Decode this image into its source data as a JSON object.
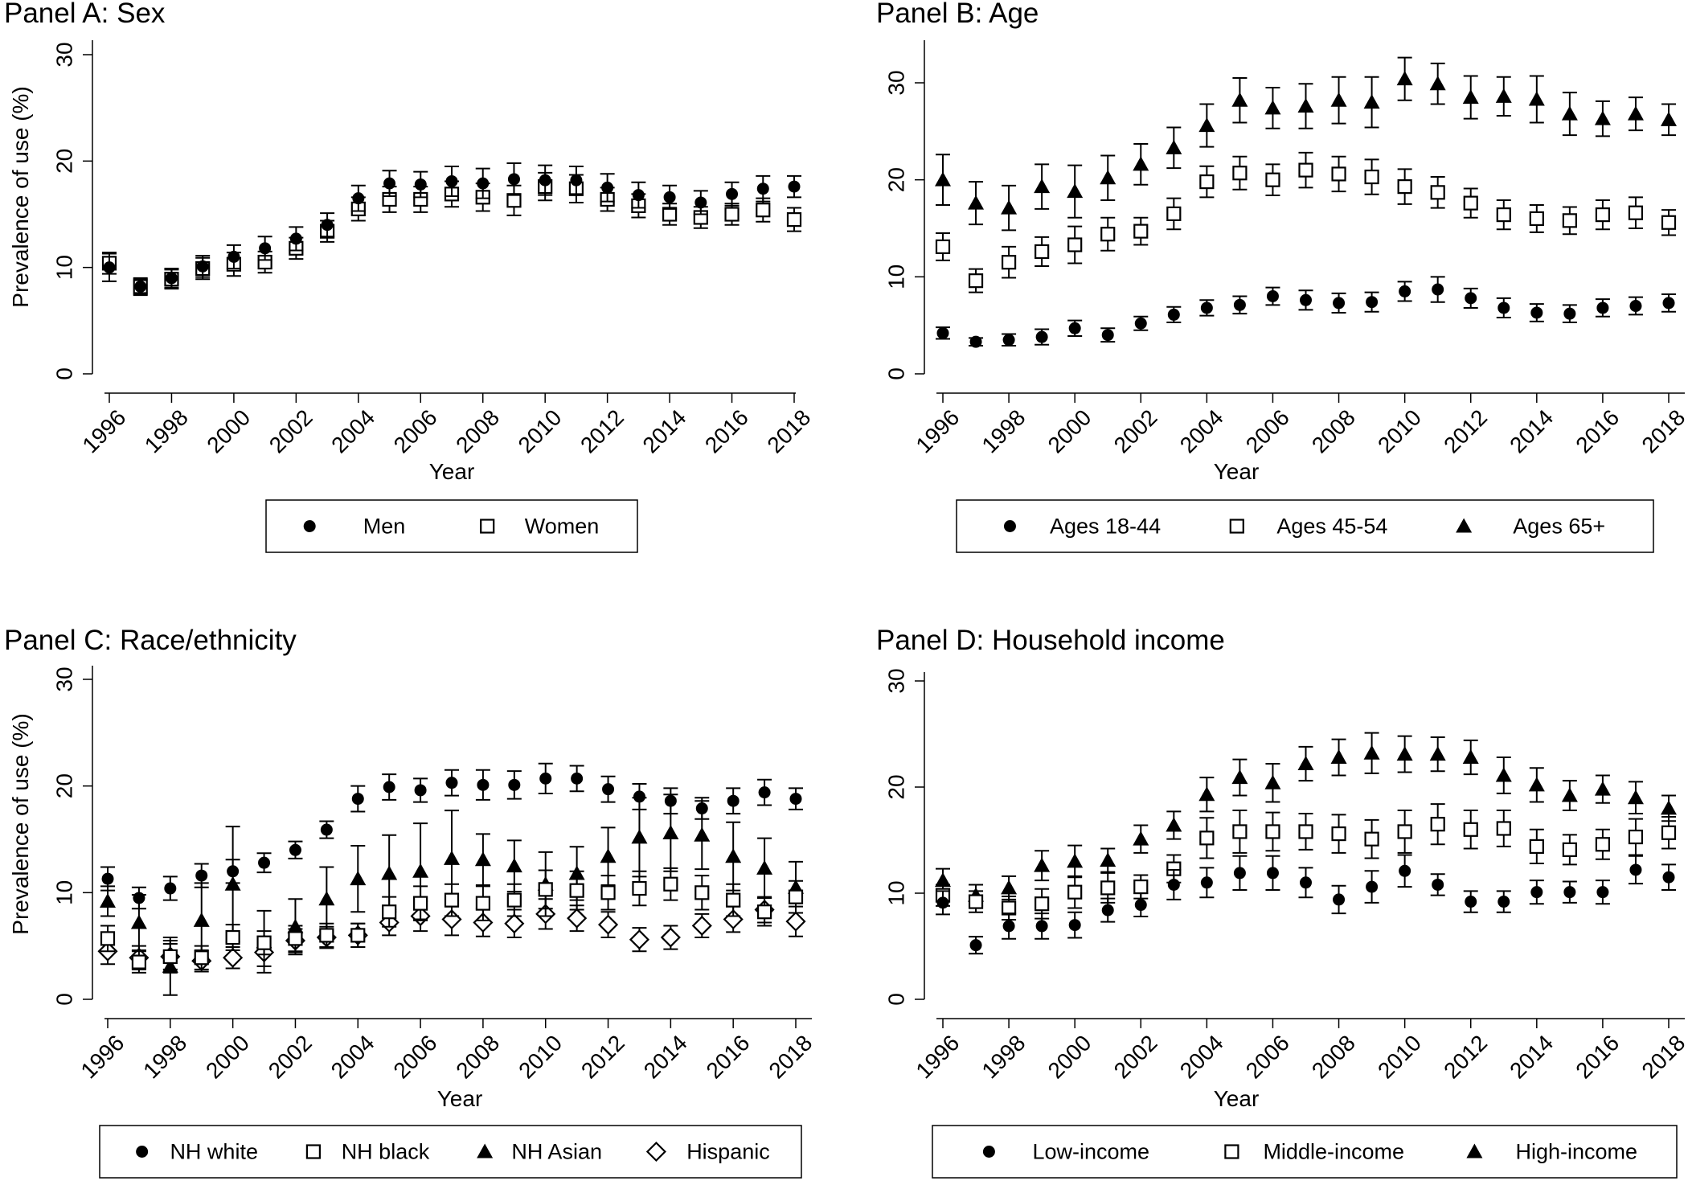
{
  "chart_data": [
    {
      "type": "scatter",
      "title": "Panel A: Sex",
      "xlabel": "Year",
      "ylabel": "Prevalence of use (%)",
      "ylim": [
        0,
        30
      ],
      "yticks": [
        "0",
        "10",
        "20",
        "30"
      ],
      "x": [
        1996,
        1997,
        1998,
        1999,
        2000,
        2001,
        2002,
        2003,
        2004,
        2005,
        2006,
        2007,
        2008,
        2009,
        2010,
        2011,
        2012,
        2013,
        2014,
        2015,
        2016,
        2017,
        2018
      ],
      "xticks": [
        "1996",
        "1998",
        "2000",
        "2002",
        "2004",
        "2006",
        "2008",
        "2010",
        "2012",
        "2014",
        "2016",
        "2018"
      ],
      "series": [
        {
          "name": "Men",
          "marker": "circle",
          "values": [
            10.0,
            8.2,
            9.0,
            10.1,
            11.0,
            11.8,
            12.7,
            14.0,
            16.5,
            17.9,
            17.8,
            18.1,
            17.9,
            18.3,
            18.2,
            18.2,
            17.5,
            16.8,
            16.6,
            16.1,
            16.9,
            17.4,
            17.6
          ],
          "errors": [
            1.3,
            0.7,
            0.9,
            1.0,
            1.1,
            1.1,
            1.1,
            1.1,
            1.2,
            1.2,
            1.2,
            1.4,
            1.4,
            1.5,
            1.4,
            1.3,
            1.3,
            1.2,
            1.1,
            1.1,
            1.1,
            1.2,
            1.0
          ]
        },
        {
          "name": "Women",
          "marker": "square",
          "values": [
            10.4,
            8.2,
            8.9,
            9.9,
            10.3,
            10.5,
            11.8,
            13.4,
            15.5,
            16.4,
            16.4,
            16.9,
            16.6,
            16.3,
            17.6,
            17.4,
            16.4,
            15.8,
            15.0,
            14.7,
            15.0,
            15.4,
            14.5
          ],
          "errors": [
            1.0,
            0.8,
            0.9,
            1.0,
            1.1,
            1.0,
            1.0,
            1.0,
            1.1,
            1.2,
            1.2,
            1.2,
            1.3,
            1.4,
            1.3,
            1.3,
            1.1,
            1.1,
            1.0,
            1.0,
            1.0,
            1.1,
            1.1
          ]
        }
      ]
    },
    {
      "type": "scatter",
      "title": "Panel B: Age",
      "xlabel": "Year",
      "ylabel": "",
      "ylim": [
        0,
        34
      ],
      "yticks": [
        "0",
        "10",
        "20",
        "30"
      ],
      "x": [
        1996,
        1997,
        1998,
        1999,
        2000,
        2001,
        2002,
        2003,
        2004,
        2005,
        2006,
        2007,
        2008,
        2009,
        2010,
        2011,
        2012,
        2013,
        2014,
        2015,
        2016,
        2017,
        2018
      ],
      "xticks": [
        "1996",
        "1998",
        "2000",
        "2002",
        "2004",
        "2006",
        "2008",
        "2010",
        "2012",
        "2014",
        "2016",
        "2018"
      ],
      "series": [
        {
          "name": "Ages 18-44",
          "marker": "circle",
          "values": [
            4.2,
            3.3,
            3.5,
            3.8,
            4.7,
            4.0,
            5.2,
            6.1,
            6.8,
            7.1,
            8.0,
            7.6,
            7.3,
            7.4,
            8.5,
            8.7,
            7.8,
            6.8,
            6.3,
            6.2,
            6.8,
            7.0,
            7.3
          ],
          "errors": [
            0.6,
            0.4,
            0.6,
            0.8,
            0.8,
            0.7,
            0.7,
            0.8,
            0.8,
            0.9,
            0.9,
            1.0,
            1.0,
            1.0,
            1.0,
            1.3,
            1.0,
            1.0,
            0.9,
            0.9,
            0.9,
            0.9,
            0.9
          ]
        },
        {
          "name": "Ages 45-54",
          "marker": "square",
          "values": [
            13.1,
            9.6,
            11.5,
            12.6,
            13.3,
            14.4,
            14.7,
            16.5,
            19.8,
            20.7,
            20.0,
            21.0,
            20.6,
            20.3,
            19.3,
            18.7,
            17.6,
            16.4,
            16.0,
            15.8,
            16.4,
            16.6,
            15.6
          ],
          "errors": [
            1.4,
            1.2,
            1.6,
            1.5,
            1.9,
            1.7,
            1.4,
            1.6,
            1.6,
            1.7,
            1.6,
            1.8,
            1.8,
            1.8,
            1.8,
            1.6,
            1.5,
            1.5,
            1.4,
            1.4,
            1.5,
            1.6,
            1.3
          ]
        },
        {
          "name": "Ages 65+",
          "marker": "triangle",
          "values": [
            20.0,
            17.6,
            17.1,
            19.3,
            18.8,
            20.2,
            21.6,
            23.3,
            25.6,
            28.2,
            27.4,
            27.6,
            28.2,
            28.0,
            30.4,
            29.9,
            28.5,
            28.6,
            28.3,
            26.8,
            26.3,
            26.8,
            26.2
          ],
          "errors": [
            2.6,
            2.2,
            2.3,
            2.3,
            2.7,
            2.3,
            2.1,
            2.1,
            2.2,
            2.3,
            2.1,
            2.3,
            2.4,
            2.6,
            2.2,
            2.1,
            2.2,
            2.0,
            2.4,
            2.2,
            1.8,
            1.7,
            1.6
          ]
        }
      ]
    },
    {
      "type": "scatter",
      "title": "Panel C: Race/ethnicity",
      "xlabel": "Year",
      "ylabel": "Prevalence of use (%)",
      "ylim": [
        0,
        30
      ],
      "yticks": [
        "0",
        "10",
        "20",
        "30"
      ],
      "x": [
        1996,
        1997,
        1998,
        1999,
        2000,
        2001,
        2002,
        2003,
        2004,
        2005,
        2006,
        2007,
        2008,
        2009,
        2010,
        2011,
        2012,
        2013,
        2014,
        2015,
        2016,
        2017,
        2018
      ],
      "xticks": [
        "1996",
        "1998",
        "2000",
        "2002",
        "2004",
        "2006",
        "2008",
        "2010",
        "2012",
        "2014",
        "2016",
        "2018"
      ],
      "series": [
        {
          "name": "NH white",
          "marker": "circle",
          "values": [
            11.3,
            9.5,
            10.4,
            11.6,
            12.0,
            12.8,
            14.0,
            15.9,
            18.8,
            19.9,
            19.6,
            20.3,
            20.1,
            20.1,
            20.7,
            20.7,
            19.7,
            19.0,
            18.6,
            17.9,
            18.6,
            19.4,
            18.8
          ],
          "errors": [
            1.1,
            1.0,
            1.1,
            1.1,
            1.1,
            0.9,
            0.8,
            0.8,
            1.2,
            1.2,
            1.1,
            1.2,
            1.4,
            1.3,
            1.4,
            1.2,
            1.2,
            1.2,
            1.2,
            1.0,
            1.2,
            1.2,
            1.0
          ]
        },
        {
          "name": "NH black",
          "marker": "square",
          "values": [
            5.7,
            3.5,
            4.0,
            3.9,
            5.8,
            5.3,
            5.7,
            6.0,
            6.0,
            8.2,
            9.0,
            9.3,
            9.0,
            9.3,
            10.3,
            10.2,
            10.0,
            10.4,
            10.8,
            10.0,
            9.3,
            8.2,
            9.6
          ],
          "errors": [
            1.2,
            1.0,
            1.2,
            1.1,
            1.2,
            1.1,
            1.2,
            1.1,
            1.1,
            1.4,
            1.6,
            1.5,
            1.6,
            1.5,
            1.8,
            1.8,
            1.6,
            1.6,
            1.5,
            1.6,
            1.5,
            1.3,
            1.5
          ]
        },
        {
          "name": "NH Asian",
          "marker": "triangle",
          "values": [
            9.2,
            7.2,
            3.1,
            7.4,
            10.8,
            5.4,
            6.8,
            9.4,
            11.3,
            11.8,
            12.0,
            13.2,
            13.1,
            12.5,
            10.8,
            11.8,
            13.4,
            15.2,
            15.6,
            15.4,
            13.4,
            12.3,
            10.5
          ],
          "errors": [
            1.4,
            2.6,
            2.7,
            3.5,
            5.4,
            2.9,
            2.6,
            3.0,
            3.1,
            3.6,
            4.5,
            4.5,
            2.4,
            2.4,
            3.0,
            2.5,
            2.7,
            3.7,
            3.6,
            3.2,
            3.2,
            2.8,
            2.4
          ]
        },
        {
          "name": "Hispanic",
          "marker": "diamond",
          "values": [
            4.5,
            3.9,
            4.0,
            3.6,
            3.9,
            4.4,
            5.5,
            5.8,
            6.0,
            7.2,
            7.8,
            7.5,
            7.2,
            7.1,
            8.0,
            7.6,
            7.0,
            5.6,
            5.8,
            6.9,
            7.5,
            8.4,
            7.3
          ],
          "errors": [
            1.2,
            1.1,
            1.5,
            1.0,
            1.0,
            1.3,
            1.1,
            1.0,
            1.1,
            1.2,
            1.4,
            1.5,
            1.3,
            1.3,
            1.4,
            1.2,
            1.2,
            1.1,
            1.1,
            1.1,
            1.2,
            1.2,
            1.4
          ]
        }
      ]
    },
    {
      "type": "scatter",
      "title": "Panel D: Household income",
      "xlabel": "Year",
      "ylabel": "",
      "ylim": [
        0,
        30
      ],
      "yticks": [
        "0",
        "10",
        "20",
        "30"
      ],
      "x": [
        1996,
        1997,
        1998,
        1999,
        2000,
        2001,
        2002,
        2003,
        2004,
        2005,
        2006,
        2007,
        2008,
        2009,
        2010,
        2011,
        2012,
        2013,
        2014,
        2015,
        2016,
        2017,
        2018
      ],
      "xticks": [
        "1996",
        "1998",
        "2000",
        "2002",
        "2004",
        "2006",
        "2008",
        "2010",
        "2012",
        "2014",
        "2016",
        "2018"
      ],
      "series": [
        {
          "name": "Low-income",
          "marker": "circle",
          "values": [
            9.1,
            5.1,
            6.9,
            6.9,
            7.0,
            8.4,
            8.9,
            10.8,
            11.0,
            11.9,
            11.9,
            11.0,
            9.4,
            10.6,
            12.1,
            10.8,
            9.2,
            9.2,
            10.1,
            10.1,
            10.1,
            12.2,
            11.5
          ],
          "errors": [
            1.1,
            0.8,
            1.2,
            1.2,
            1.2,
            1.1,
            1.1,
            1.4,
            1.4,
            1.6,
            1.6,
            1.4,
            1.3,
            1.5,
            1.5,
            1.0,
            1.0,
            1.0,
            1.1,
            1.0,
            1.1,
            1.3,
            1.2
          ]
        },
        {
          "name": "Middle-income",
          "marker": "square",
          "values": [
            9.8,
            9.2,
            8.6,
            9.0,
            10.1,
            10.5,
            10.6,
            12.3,
            15.2,
            15.8,
            15.8,
            15.8,
            15.6,
            15.1,
            15.8,
            16.5,
            16.0,
            16.1,
            14.4,
            14.1,
            14.6,
            15.3,
            15.7
          ],
          "errors": [
            1.0,
            1.0,
            1.1,
            1.4,
            1.5,
            1.4,
            1.1,
            1.3,
            1.9,
            2.0,
            1.8,
            1.7,
            1.8,
            1.8,
            2.0,
            1.9,
            1.8,
            1.7,
            1.6,
            1.4,
            1.4,
            1.7,
            1.5
          ]
        },
        {
          "name": "High-income",
          "marker": "triangle",
          "values": [
            11.2,
            9.8,
            10.5,
            12.6,
            13.0,
            13.1,
            15.1,
            16.4,
            19.3,
            20.9,
            20.4,
            22.2,
            22.8,
            23.2,
            23.1,
            23.1,
            22.8,
            21.1,
            20.2,
            19.2,
            19.8,
            19.0,
            18.0
          ],
          "errors": [
            1.1,
            1.0,
            1.1,
            1.4,
            1.5,
            1.1,
            1.3,
            1.3,
            1.6,
            1.7,
            1.8,
            1.6,
            1.7,
            1.9,
            1.7,
            1.6,
            1.6,
            1.7,
            1.6,
            1.4,
            1.3,
            1.5,
            1.2
          ]
        }
      ]
    }
  ]
}
